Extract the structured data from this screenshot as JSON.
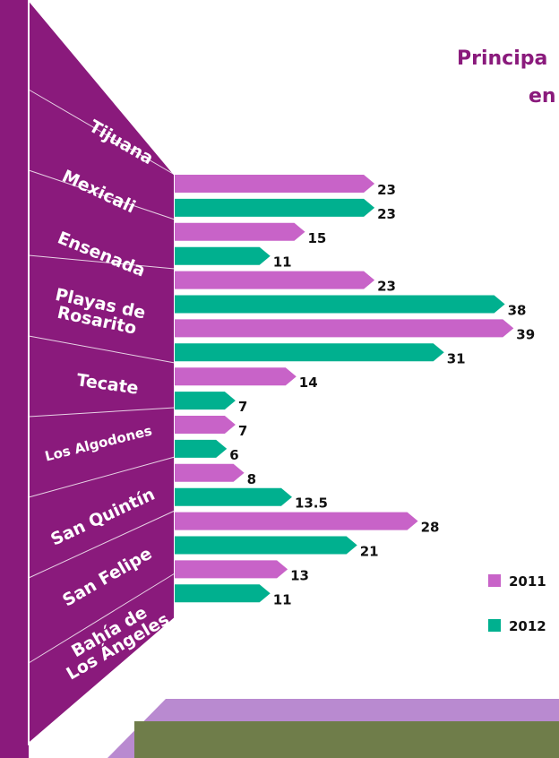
{
  "chart_data": {
    "type": "bar",
    "orientation": "horizontal",
    "title": "Principa",
    "subtitle": "en",
    "categories": [
      "Tijuana",
      "Mexicali",
      "Ensenada",
      "Playas de Rosarito",
      "Tecate",
      "Los Algodones",
      "San Quintín",
      "San Felipe",
      "Bahía de Los Ángeles"
    ],
    "series": [
      {
        "name": "2011",
        "color": "#c863c8",
        "values": [
          23,
          15,
          23,
          39,
          14,
          7,
          8,
          28,
          13
        ]
      },
      {
        "name": "2012",
        "color": "#00b08f",
        "values": [
          23,
          11,
          38,
          31,
          7,
          6,
          13.5,
          21,
          11
        ]
      }
    ],
    "legend": "right"
  }
}
